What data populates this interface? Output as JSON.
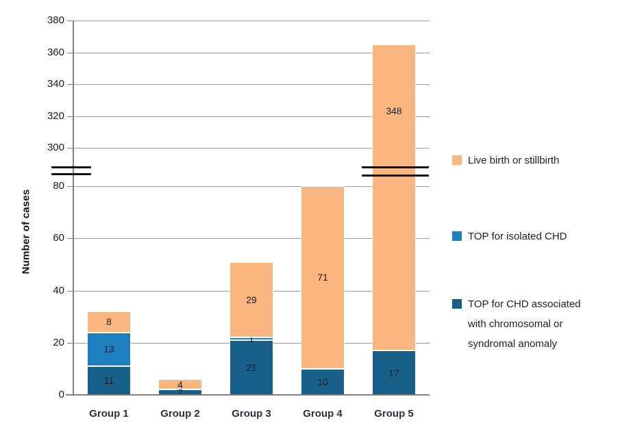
{
  "chart_data": {
    "type": "bar",
    "subtype": "stacked-with-broken-axis",
    "title": "",
    "xlabel": "",
    "ylabel": "Number of cases",
    "categories": [
      "Group 1",
      "Group 2",
      "Group 3",
      "Group 4",
      "Group 5"
    ],
    "series": [
      {
        "name": "TOP for CHD associated with chromosomal or syndromal anomaly",
        "color": "#17608A",
        "values": [
          11,
          2,
          21,
          10,
          17
        ],
        "labels": [
          "11",
          "2",
          "21",
          "10",
          "17"
        ]
      },
      {
        "name": "TOP for isolated CHD",
        "color": "#1E7FBF",
        "values": [
          13,
          0,
          1,
          0,
          0
        ],
        "labels": [
          "13",
          null,
          "1",
          null,
          "0"
        ]
      },
      {
        "name": "Live birth or stillbirth",
        "color": "#FBB57F",
        "values": [
          8,
          4,
          29,
          71,
          348
        ],
        "labels": [
          "8",
          "4",
          "29",
          "71",
          "348"
        ]
      }
    ],
    "totals": [
      32,
      6,
      51,
      81,
      365
    ],
    "y_axis": {
      "lower_ticks": [
        0,
        20,
        40,
        60,
        80
      ],
      "upper_ticks": [
        300,
        320,
        340,
        360,
        380
      ],
      "axis_break": true,
      "ylim_segments": [
        [
          0,
          80
        ],
        [
          300,
          380
        ]
      ]
    },
    "grid": true,
    "legend": {
      "position": "right",
      "entries": [
        {
          "label": "Live birth or stillbirth",
          "color": "#FBB57F"
        },
        {
          "label": "TOP for isolated CHD",
          "color": "#1E7FBF"
        },
        {
          "label": "TOP for CHD associated with chromosomal or syndromal anomaly",
          "color": "#17608A"
        }
      ]
    }
  }
}
